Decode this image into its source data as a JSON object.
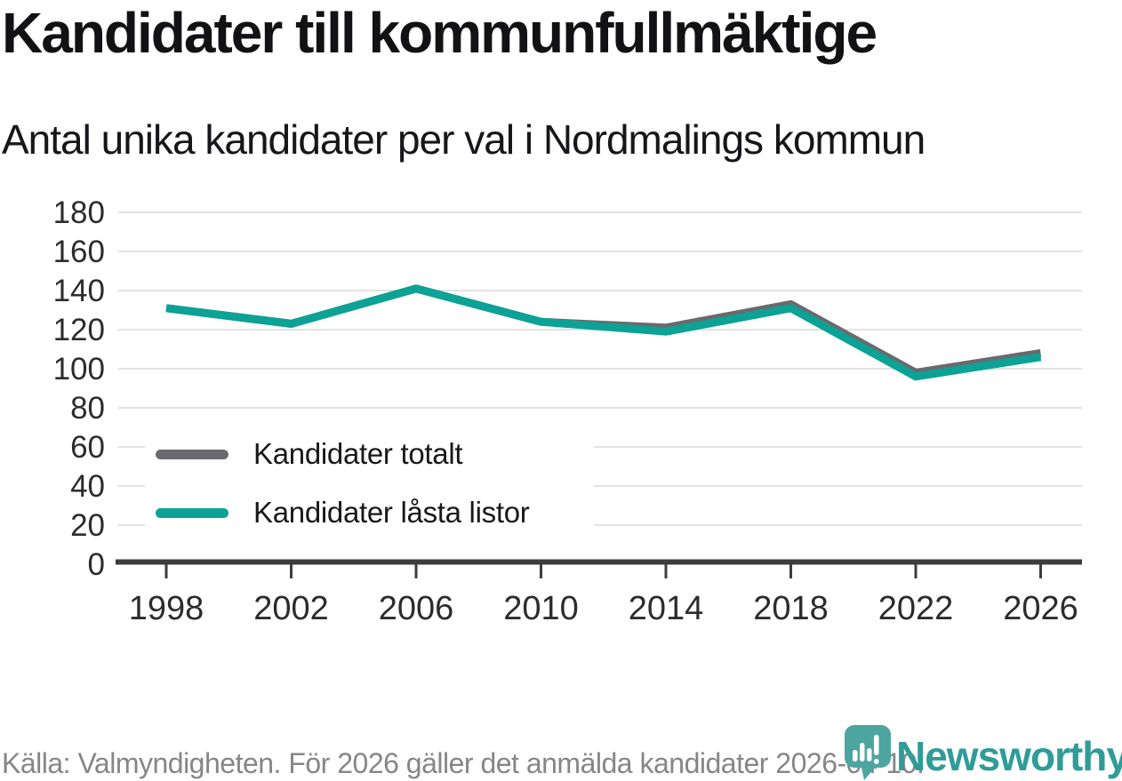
{
  "header": {
    "title": "Kandidater till kommunfullmäktige",
    "subtitle": "Antal unika kandidater per val i Nordmalings kommun"
  },
  "chart_data": {
    "type": "line",
    "x": [
      1998,
      2002,
      2006,
      2010,
      2014,
      2018,
      2022,
      2026
    ],
    "series": [
      {
        "name": "Kandidater totalt",
        "color": "#6a6a6e",
        "values": [
          131,
          123,
          141,
          124,
          121,
          133,
          98,
          108
        ]
      },
      {
        "name": "Kandidater låsta listor",
        "color": "#0ca296",
        "values": [
          131,
          123,
          141,
          124,
          119,
          131,
          96,
          106
        ]
      }
    ],
    "ylim": [
      0,
      180
    ],
    "ytick_step": 20,
    "grid": true,
    "legend_position": "inside-bottom-left",
    "xlabel": "",
    "ylabel": ""
  },
  "footer": {
    "source": "Källa: Valmyndigheten. För 2026 gäller det anmälda kandidater 2026-04-10."
  },
  "logo": {
    "text": "Newsworthy",
    "pin_color": "#4da59f",
    "bars_color": "#ffffff",
    "text_color": "#2f9c98"
  },
  "style_colors": {
    "grid": "#e3e3e4",
    "axis": "#3d3d40",
    "tick_labels": "#2c2c30",
    "title": "#121215",
    "source_text": "#86868a"
  }
}
